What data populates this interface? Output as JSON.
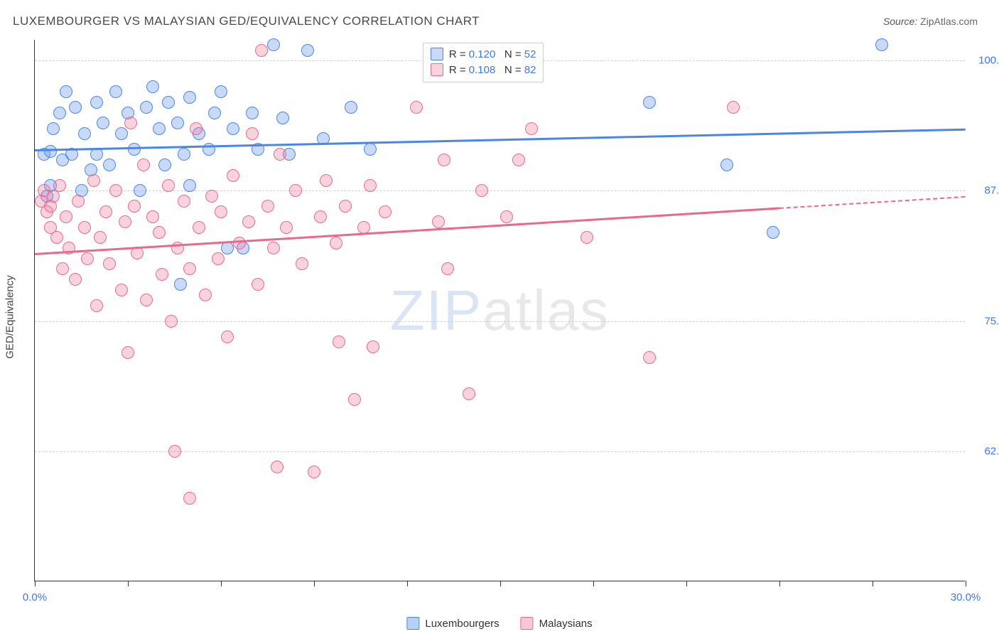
{
  "title": "LUXEMBOURGER VS MALAYSIAN GED/EQUIVALENCY CORRELATION CHART",
  "source_label": "Source:",
  "source_value": "ZipAtlas.com",
  "yaxis_label": "GED/Equivalency",
  "watermark_part1": "ZIP",
  "watermark_part2": "atlas",
  "chart": {
    "type": "scatter",
    "xlim": [
      0,
      30
    ],
    "ylim": [
      50,
      102
    ],
    "x_ticks": [
      0,
      3,
      6,
      9,
      12,
      15,
      18,
      21,
      24,
      27,
      30
    ],
    "x_tick_labels": {
      "0": "0.0%",
      "30": "30.0%"
    },
    "y_gridlines": [
      62.5,
      75.0,
      87.5,
      100.0
    ],
    "y_tick_labels": [
      "62.5%",
      "75.0%",
      "87.5%",
      "100.0%"
    ],
    "background_color": "#ffffff",
    "grid_color": "#d0d0d0",
    "axis_color": "#333333",
    "marker_radius": 9,
    "marker_border_width": 1.5,
    "marker_fill_opacity": 0.35,
    "series": [
      {
        "name": "Luxembourgers",
        "color_stroke": "#4a86e8",
        "color_fill": "rgba(100,150,235,0.35)",
        "R": "0.120",
        "N": "52",
        "trend": {
          "x1": 0,
          "y1": 91.5,
          "x2": 30,
          "y2": 93.5,
          "dash_from_x": 30
        },
        "points": [
          [
            0.3,
            91.0
          ],
          [
            0.4,
            87.0
          ],
          [
            0.5,
            88.0
          ],
          [
            0.5,
            91.3
          ],
          [
            0.6,
            93.5
          ],
          [
            0.8,
            95.0
          ],
          [
            0.9,
            90.5
          ],
          [
            1.0,
            97.0
          ],
          [
            1.2,
            91.0
          ],
          [
            1.3,
            95.5
          ],
          [
            1.5,
            87.5
          ],
          [
            1.6,
            93.0
          ],
          [
            1.8,
            89.5
          ],
          [
            2.0,
            96.0
          ],
          [
            2.0,
            91.0
          ],
          [
            2.2,
            94.0
          ],
          [
            2.4,
            90.0
          ],
          [
            2.6,
            97.0
          ],
          [
            2.8,
            93.0
          ],
          [
            3.0,
            95.0
          ],
          [
            3.2,
            91.5
          ],
          [
            3.4,
            87.5
          ],
          [
            3.6,
            95.5
          ],
          [
            3.8,
            97.5
          ],
          [
            4.0,
            93.5
          ],
          [
            4.2,
            90.0
          ],
          [
            4.3,
            96.0
          ],
          [
            4.6,
            94.0
          ],
          [
            4.7,
            78.5
          ],
          [
            4.8,
            91.0
          ],
          [
            5.0,
            96.5
          ],
          [
            5.0,
            88.0
          ],
          [
            5.3,
            93.0
          ],
          [
            5.6,
            91.5
          ],
          [
            5.8,
            95.0
          ],
          [
            6.0,
            97.0
          ],
          [
            6.2,
            82.0
          ],
          [
            6.4,
            93.5
          ],
          [
            6.7,
            82.0
          ],
          [
            7.0,
            95.0
          ],
          [
            7.2,
            91.5
          ],
          [
            7.7,
            101.5
          ],
          [
            8.0,
            94.5
          ],
          [
            8.2,
            91.0
          ],
          [
            8.8,
            101.0
          ],
          [
            9.3,
            92.5
          ],
          [
            10.2,
            95.5
          ],
          [
            10.8,
            91.5
          ],
          [
            19.8,
            96.0
          ],
          [
            22.3,
            90.0
          ],
          [
            23.8,
            83.5
          ],
          [
            27.3,
            101.5
          ]
        ]
      },
      {
        "name": "Malaysians",
        "color_stroke": "#e86a8a",
        "color_fill": "rgba(235,130,160,0.35)",
        "R": "0.108",
        "N": "82",
        "trend": {
          "x1": 0,
          "y1": 81.5,
          "x2": 30,
          "y2": 87.0,
          "dash_from_x": 24
        },
        "points": [
          [
            0.2,
            86.5
          ],
          [
            0.3,
            87.5
          ],
          [
            0.4,
            85.5
          ],
          [
            0.5,
            86.0
          ],
          [
            0.5,
            84.0
          ],
          [
            0.6,
            87.0
          ],
          [
            0.7,
            83.0
          ],
          [
            0.8,
            88.0
          ],
          [
            0.9,
            80.0
          ],
          [
            1.0,
            85.0
          ],
          [
            1.1,
            82.0
          ],
          [
            1.3,
            79.0
          ],
          [
            1.4,
            86.5
          ],
          [
            1.6,
            84.0
          ],
          [
            1.7,
            81.0
          ],
          [
            1.9,
            88.5
          ],
          [
            2.0,
            76.5
          ],
          [
            2.1,
            83.0
          ],
          [
            2.3,
            85.5
          ],
          [
            2.4,
            80.5
          ],
          [
            2.6,
            87.5
          ],
          [
            2.8,
            78.0
          ],
          [
            2.9,
            84.5
          ],
          [
            3.0,
            72.0
          ],
          [
            3.2,
            86.0
          ],
          [
            3.3,
            81.5
          ],
          [
            3.5,
            90.0
          ],
          [
            3.6,
            77.0
          ],
          [
            3.8,
            85.0
          ],
          [
            4.0,
            83.5
          ],
          [
            4.1,
            79.5
          ],
          [
            4.3,
            88.0
          ],
          [
            4.4,
            75.0
          ],
          [
            4.5,
            62.5
          ],
          [
            4.6,
            82.0
          ],
          [
            4.8,
            86.5
          ],
          [
            5.0,
            80.0
          ],
          [
            5.0,
            58.0
          ],
          [
            5.2,
            93.5
          ],
          [
            5.3,
            84.0
          ],
          [
            5.5,
            77.5
          ],
          [
            5.7,
            87.0
          ],
          [
            5.9,
            81.0
          ],
          [
            6.0,
            85.5
          ],
          [
            6.2,
            73.5
          ],
          [
            6.4,
            89.0
          ],
          [
            6.6,
            82.5
          ],
          [
            6.9,
            84.5
          ],
          [
            7.0,
            93.0
          ],
          [
            7.2,
            78.5
          ],
          [
            7.3,
            101.0
          ],
          [
            7.5,
            86.0
          ],
          [
            7.7,
            82.0
          ],
          [
            7.8,
            61.0
          ],
          [
            8.1,
            84.0
          ],
          [
            8.4,
            87.5
          ],
          [
            8.6,
            80.5
          ],
          [
            9.0,
            60.5
          ],
          [
            9.2,
            85.0
          ],
          [
            9.4,
            88.5
          ],
          [
            9.7,
            82.5
          ],
          [
            9.8,
            73.0
          ],
          [
            10.0,
            86.0
          ],
          [
            10.3,
            67.5
          ],
          [
            10.6,
            84.0
          ],
          [
            10.9,
            72.5
          ],
          [
            10.8,
            88.0
          ],
          [
            11.3,
            85.5
          ],
          [
            12.3,
            95.5
          ],
          [
            13.0,
            84.5
          ],
          [
            13.2,
            90.5
          ],
          [
            13.3,
            80.0
          ],
          [
            14.4,
            87.5
          ],
          [
            15.2,
            85.0
          ],
          [
            15.6,
            90.5
          ],
          [
            16.0,
            93.5
          ],
          [
            17.8,
            83.0
          ],
          [
            19.8,
            71.5
          ],
          [
            22.5,
            95.5
          ],
          [
            14.0,
            68.0
          ],
          [
            7.9,
            91.0
          ],
          [
            3.1,
            94.0
          ]
        ]
      }
    ]
  },
  "legend_top": {
    "R_label": "R =",
    "N_label": "N ="
  },
  "legend_bottom": [
    {
      "label": "Luxembourgers",
      "stroke": "#4a86e8",
      "fill": "rgba(100,150,235,0.45)"
    },
    {
      "label": "Malaysians",
      "stroke": "#e86a8a",
      "fill": "rgba(235,130,160,0.45)"
    }
  ]
}
